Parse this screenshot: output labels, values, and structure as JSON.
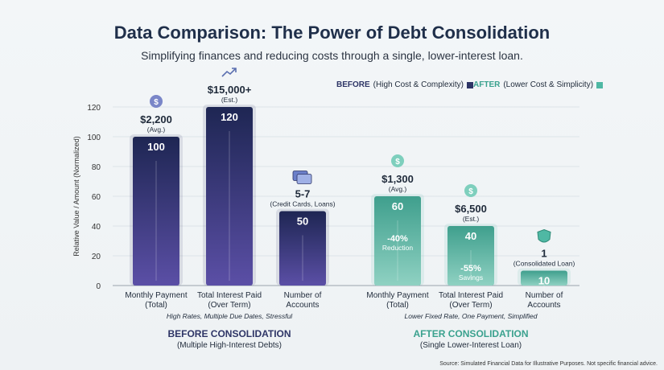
{
  "title": "Data Comparison: The Power of Debt Consolidation",
  "subtitle": "Simplifying finances and reducing costs through a single, lower-interest loan.",
  "legend": {
    "before_label": "BEFORE",
    "before_desc": "(High Cost & Complexity)",
    "before_color": "#2e3566",
    "after_label": "AFTER",
    "after_desc": "(Lower Cost & Simplicity)",
    "after_color": "#4fb8a4"
  },
  "source": "Source: Simulated Financial Data for Illustrative Purposes. Not specific financial advice.",
  "chart_data": {
    "type": "bar",
    "ylabel": "Relative Value / Amount (Normalized)",
    "ylim": [
      0,
      120
    ],
    "yticks": [
      0,
      20,
      40,
      60,
      80,
      100,
      120
    ],
    "groups": [
      {
        "name": "BEFORE CONSOLIDATION",
        "subtitle": "(Multiple High-Interest Debts)",
        "note": "High Rates, Multiple Due Dates, Stressful",
        "color": "#2e3566",
        "bars": [
          {
            "category": [
              "Monthly Payment",
              "(Total)"
            ],
            "value": 100,
            "label": "100",
            "annotation": "$2,200",
            "annotation_sub": "(Avg.)",
            "icon": "dollar-icon",
            "icon_glyph": "$"
          },
          {
            "category": [
              "Total Interest Paid",
              "(Over Term)"
            ],
            "value": 120,
            "label": "120",
            "annotation": "$15,000+",
            "annotation_sub": "(Est.)",
            "icon": "trend-up-icon",
            "icon_glyph": "↗"
          },
          {
            "category": [
              "Number of",
              "Accounts"
            ],
            "value": 50,
            "label": "50",
            "annotation": "5-7",
            "annotation_sub": "(Credit Cards, Loans)",
            "icon": "credit-cards-icon",
            "icon_glyph": "▤"
          }
        ]
      },
      {
        "name": "AFTER CONSOLIDATION",
        "subtitle": "(Single Lower-Interest Loan)",
        "note": "Lower Fixed Rate, One Payment, Simplified",
        "color": "#4fb8a4",
        "bars": [
          {
            "category": [
              "Monthly Payment",
              "(Total)"
            ],
            "value": 60,
            "label": "60",
            "annotation": "$1,300",
            "annotation_sub": "(Avg.)",
            "icon": "dollar-icon",
            "icon_glyph": "$",
            "change": "-40%",
            "change_sub": "Reduction"
          },
          {
            "category": [
              "Total Interest Paid",
              "(Over Term)"
            ],
            "value": 40,
            "label": "40",
            "annotation": "$6,500",
            "annotation_sub": "(Est.)",
            "icon": "dollar-icon",
            "icon_glyph": "$",
            "change": "-55%",
            "change_sub": "Savings"
          },
          {
            "category": [
              "Number of",
              "Accounts"
            ],
            "value": 10,
            "label": "10",
            "annotation": "1",
            "annotation_sub": "(Consolidated Loan)",
            "icon": "shield-icon",
            "icon_glyph": "✓"
          }
        ]
      }
    ]
  }
}
